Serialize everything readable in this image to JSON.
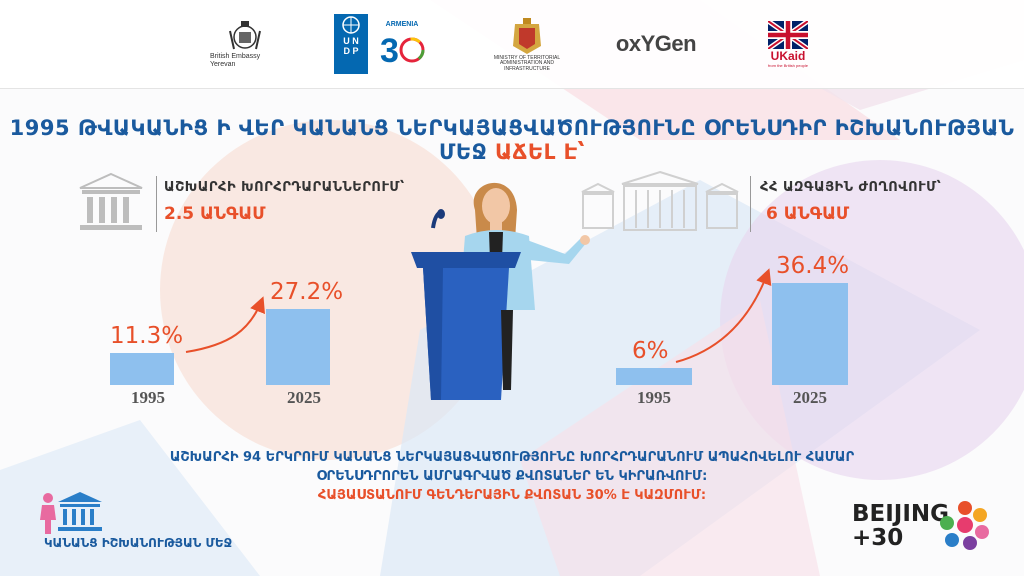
{
  "logos": {
    "embassy_line1": "British Embassy",
    "embassy_line2": "Yerevan",
    "undp": "U N D P",
    "armenia": "ARMENIA",
    "ministry_line1": "MINISTRY OF TERRITORIAL",
    "ministry_line2": "ADMINISTRATION AND INFRASTRUCTURE",
    "oxygen": "oxYGen",
    "ukaid": "UKaid",
    "ukaid_sub": "from the British people"
  },
  "title": {
    "main": "1995 ԹՎԱԿԱՆԻՑ Ի ՎԵՐ ԿԱՆԱՆՑ ՆԵՐԿԱՅԱՑՎԱԾՈՒԹՅՈՒՆԸ ՕՐԵՆՍԴԻՐ ԻՇԽԱՆՈՒԹՅԱՆ ՄԵՋ",
    "accent": "ԱՃԵԼ Է՝"
  },
  "left": {
    "caption": "ԱՇԽԱՐՀԻ ԽՈՐՀՐԴԱՐԱՆՆԵՐՈՒՄ՝",
    "multiplier": "2.5 ԱՆԳԱՄ"
  },
  "right": {
    "caption": "ՀՀ ԱԶԳԱՅԻՆ ԺՈՂՈՎՈՒՄ՝",
    "multiplier": "6 ԱՆԳԱՄ"
  },
  "chart_data": [
    {
      "type": "bar",
      "categories": [
        "1995",
        "2025"
      ],
      "values": [
        11.3,
        27.2
      ],
      "labels": [
        "11.3%",
        "27.2%"
      ]
    },
    {
      "type": "bar",
      "categories": [
        "1995",
        "2025"
      ],
      "values": [
        6,
        36.4
      ],
      "labels": [
        "6%",
        "36.4%"
      ]
    }
  ],
  "bottom": {
    "line1": "ԱՇԽԱՐՀԻ 94 ԵՐԿՐՈՒՄ ԿԱՆԱՆՑ ՆԵՐԿԱՅԱՑՎԱԾՈՒԹՅՈՒՆԸ ԽՈՐՀՐԴԱՐԱՆՈՒՄ  ԱՊԱՀՈՎԵԼՈՒ ՀԱՄԱՐ",
    "line2": "ՕՐԵՆՍԴՐՈՐԵՆ ԱՄՐԱԳՐՎԱԾ ՔՎՈՏԱՆԵՐ ԵՆ ԿԻՐԱՌՎՈՒՄ:",
    "line3": "ՀԱՅԱՍՏԱՆՈՒՄ ԳԵՆԴԵՐԱՅԻՆ ՔՎՈՏԱՆ 30% Է ԿԱԶՄՈՒՄ:"
  },
  "corner": "ԿԱՆԱՆՑ ԻՇԽԱՆՈՒԹՅԱՆ ՄԵՋ",
  "beijing": {
    "line1": "BEIJING",
    "line2": "+30"
  },
  "colors": {
    "blue": "#1a5a9e",
    "orange": "#e8502a",
    "bar": "#8ec0ee"
  }
}
